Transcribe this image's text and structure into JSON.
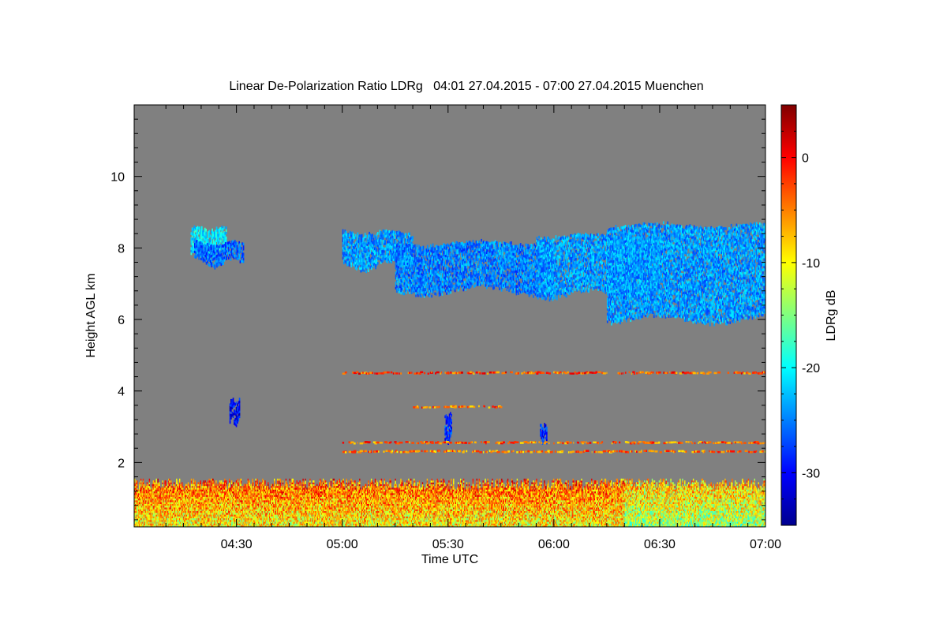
{
  "chart_data": {
    "type": "heatmap",
    "title": "Linear De-Polarization Ratio LDRg   04:01 27.04.2015 - 07:00 27.04.2015 Muenchen",
    "xlabel": "Time UTC",
    "ylabel": "Height AGL km",
    "x_tick_labels": [
      "04:30",
      "05:00",
      "05:30",
      "06:00",
      "06:30",
      "07:00"
    ],
    "x_tick_minutes": [
      270,
      300,
      330,
      360,
      390,
      420
    ],
    "xlim_minutes": [
      241,
      420
    ],
    "y_tick_labels": [
      "2",
      "4",
      "6",
      "8",
      "10"
    ],
    "y_tick_values": [
      2,
      4,
      6,
      8,
      10
    ],
    "ylim": [
      0.2,
      12
    ],
    "background_color": "#808080",
    "colorbar": {
      "label": "LDRg dB",
      "range": [
        -35,
        5
      ],
      "tick_values": [
        0,
        -10,
        -20,
        -30
      ],
      "tick_labels": [
        "0",
        "-10",
        "-20",
        "-30"
      ],
      "colormap": "jet"
    },
    "features": [
      {
        "kind": "cirrus",
        "t_start": 257,
        "t_end": 267,
        "h_bottom": 7.8,
        "h_top": 8.5,
        "ldr_db": -21
      },
      {
        "kind": "cirrus",
        "t_start": 258,
        "t_end": 272,
        "h_bottom": 7.6,
        "h_top": 8.1,
        "ldr_db": -26
      },
      {
        "kind": "cirrus",
        "t_start": 300,
        "t_end": 320,
        "h_bottom": 7.5,
        "h_top": 8.4,
        "ldr_db": -24
      },
      {
        "kind": "cirrus",
        "t_start": 315,
        "t_end": 360,
        "h_bottom": 6.8,
        "h_top": 8.1,
        "ldr_db": -25
      },
      {
        "kind": "cirrus",
        "t_start": 355,
        "t_end": 390,
        "h_bottom": 6.7,
        "h_top": 8.3,
        "ldr_db": -24
      },
      {
        "kind": "cirrus",
        "t_start": 375,
        "t_end": 420,
        "h_bottom": 6.0,
        "h_top": 8.6,
        "ldr_db": -24
      },
      {
        "kind": "cloud",
        "t_start": 268,
        "t_end": 271,
        "h_bottom": 3.1,
        "h_top": 3.7,
        "ldr_db": -30
      },
      {
        "kind": "cloud",
        "t_start": 329,
        "t_end": 331,
        "h_bottom": 2.6,
        "h_top": 3.3,
        "ldr_db": -28
      },
      {
        "kind": "cloud",
        "t_start": 356,
        "t_end": 358,
        "h_bottom": 2.6,
        "h_top": 3.0,
        "ldr_db": -29
      },
      {
        "kind": "boundary_layer",
        "t_start": 241,
        "t_end": 420,
        "h_bottom": 0.2,
        "h_top": 1.3,
        "ldr_db": -10
      },
      {
        "kind": "noise_line",
        "t_start": 300,
        "t_end": 420,
        "h": 4.5,
        "ldr_db": -3
      },
      {
        "kind": "noise_line",
        "t_start": 300,
        "t_end": 420,
        "h": 2.55,
        "ldr_db": -4
      },
      {
        "kind": "noise_line",
        "t_start": 300,
        "t_end": 420,
        "h": 2.3,
        "ldr_db": -5
      },
      {
        "kind": "noise_line",
        "t_start": 320,
        "t_end": 345,
        "h": 3.55,
        "ldr_db": -4
      }
    ]
  }
}
